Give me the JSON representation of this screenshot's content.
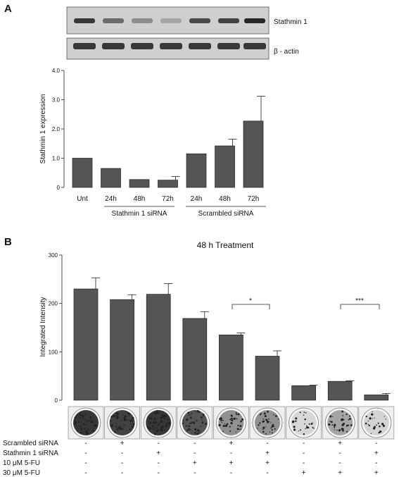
{
  "panel_a_label": "A",
  "panel_b_label": "B",
  "blot": {
    "labels": [
      "Stathmin 1",
      "β - actin"
    ],
    "stathmin_intensity": [
      0.85,
      0.55,
      0.35,
      0.2,
      0.75,
      0.8,
      0.95
    ],
    "actin_intensity": [
      0.85,
      0.85,
      0.85,
      0.85,
      0.85,
      0.85,
      0.85
    ]
  },
  "chart_a": {
    "ylabel": "Stathmin 1 expression",
    "group_labels": [
      "Stathmin 1 siRNA",
      "Scrambled siRNA"
    ]
  },
  "chart_b": {
    "title": "48 h Treatment",
    "ylabel": "Integrated Intensity",
    "significance": [
      "*",
      "***"
    ],
    "colony_density": [
      0.9,
      0.85,
      0.9,
      0.75,
      0.45,
      0.45,
      0.1,
      0.35,
      0.12
    ],
    "conditions": [
      {
        "name": "Scrambled siRNA",
        "marks": [
          "-",
          "+",
          "-",
          "-",
          "+",
          "-",
          "-",
          "+",
          "-"
        ]
      },
      {
        "name": "Stathmin 1 siRNA",
        "marks": [
          "-",
          "-",
          "+",
          "-",
          "-",
          "+",
          "-",
          "-",
          "+"
        ]
      },
      {
        "name": "10 μM 5-FU",
        "marks": [
          "-",
          "-",
          "-",
          "+",
          "+",
          "+",
          "-",
          "-",
          "-"
        ]
      },
      {
        "name": "30 μM 5-FU",
        "marks": [
          "-",
          "-",
          "-",
          "-",
          "-",
          "-",
          "+",
          "+",
          "+"
        ]
      }
    ]
  },
  "chart_data": [
    {
      "type": "bar",
      "title": "",
      "xlabel": "",
      "ylabel": "Stathmin 1 expression",
      "categories": [
        "Unt",
        "24h",
        "48h",
        "72h",
        "24h",
        "48h",
        "72h"
      ],
      "values": [
        1.0,
        0.65,
        0.27,
        0.25,
        1.15,
        1.42,
        2.27
      ],
      "errors": [
        0,
        0,
        0,
        0.12,
        0,
        0.23,
        0.85
      ],
      "ylim": [
        0,
        4
      ],
      "yticks": [
        "0",
        "1.0",
        "2.0",
        "3.0",
        "4.0"
      ],
      "grid": false,
      "color": "#555555"
    },
    {
      "type": "bar",
      "title": "48 h Treatment",
      "xlabel": "",
      "ylabel": "Integrated Intensity",
      "values": [
        230,
        208,
        219,
        169,
        135,
        91,
        30,
        39,
        11
      ],
      "errors": [
        23,
        10,
        22,
        14,
        4,
        11,
        1,
        1,
        3
      ],
      "ylim": [
        0,
        300
      ],
      "yticks": [
        "0",
        "100",
        "200",
        "300"
      ],
      "grid": false,
      "color": "#555555"
    }
  ]
}
